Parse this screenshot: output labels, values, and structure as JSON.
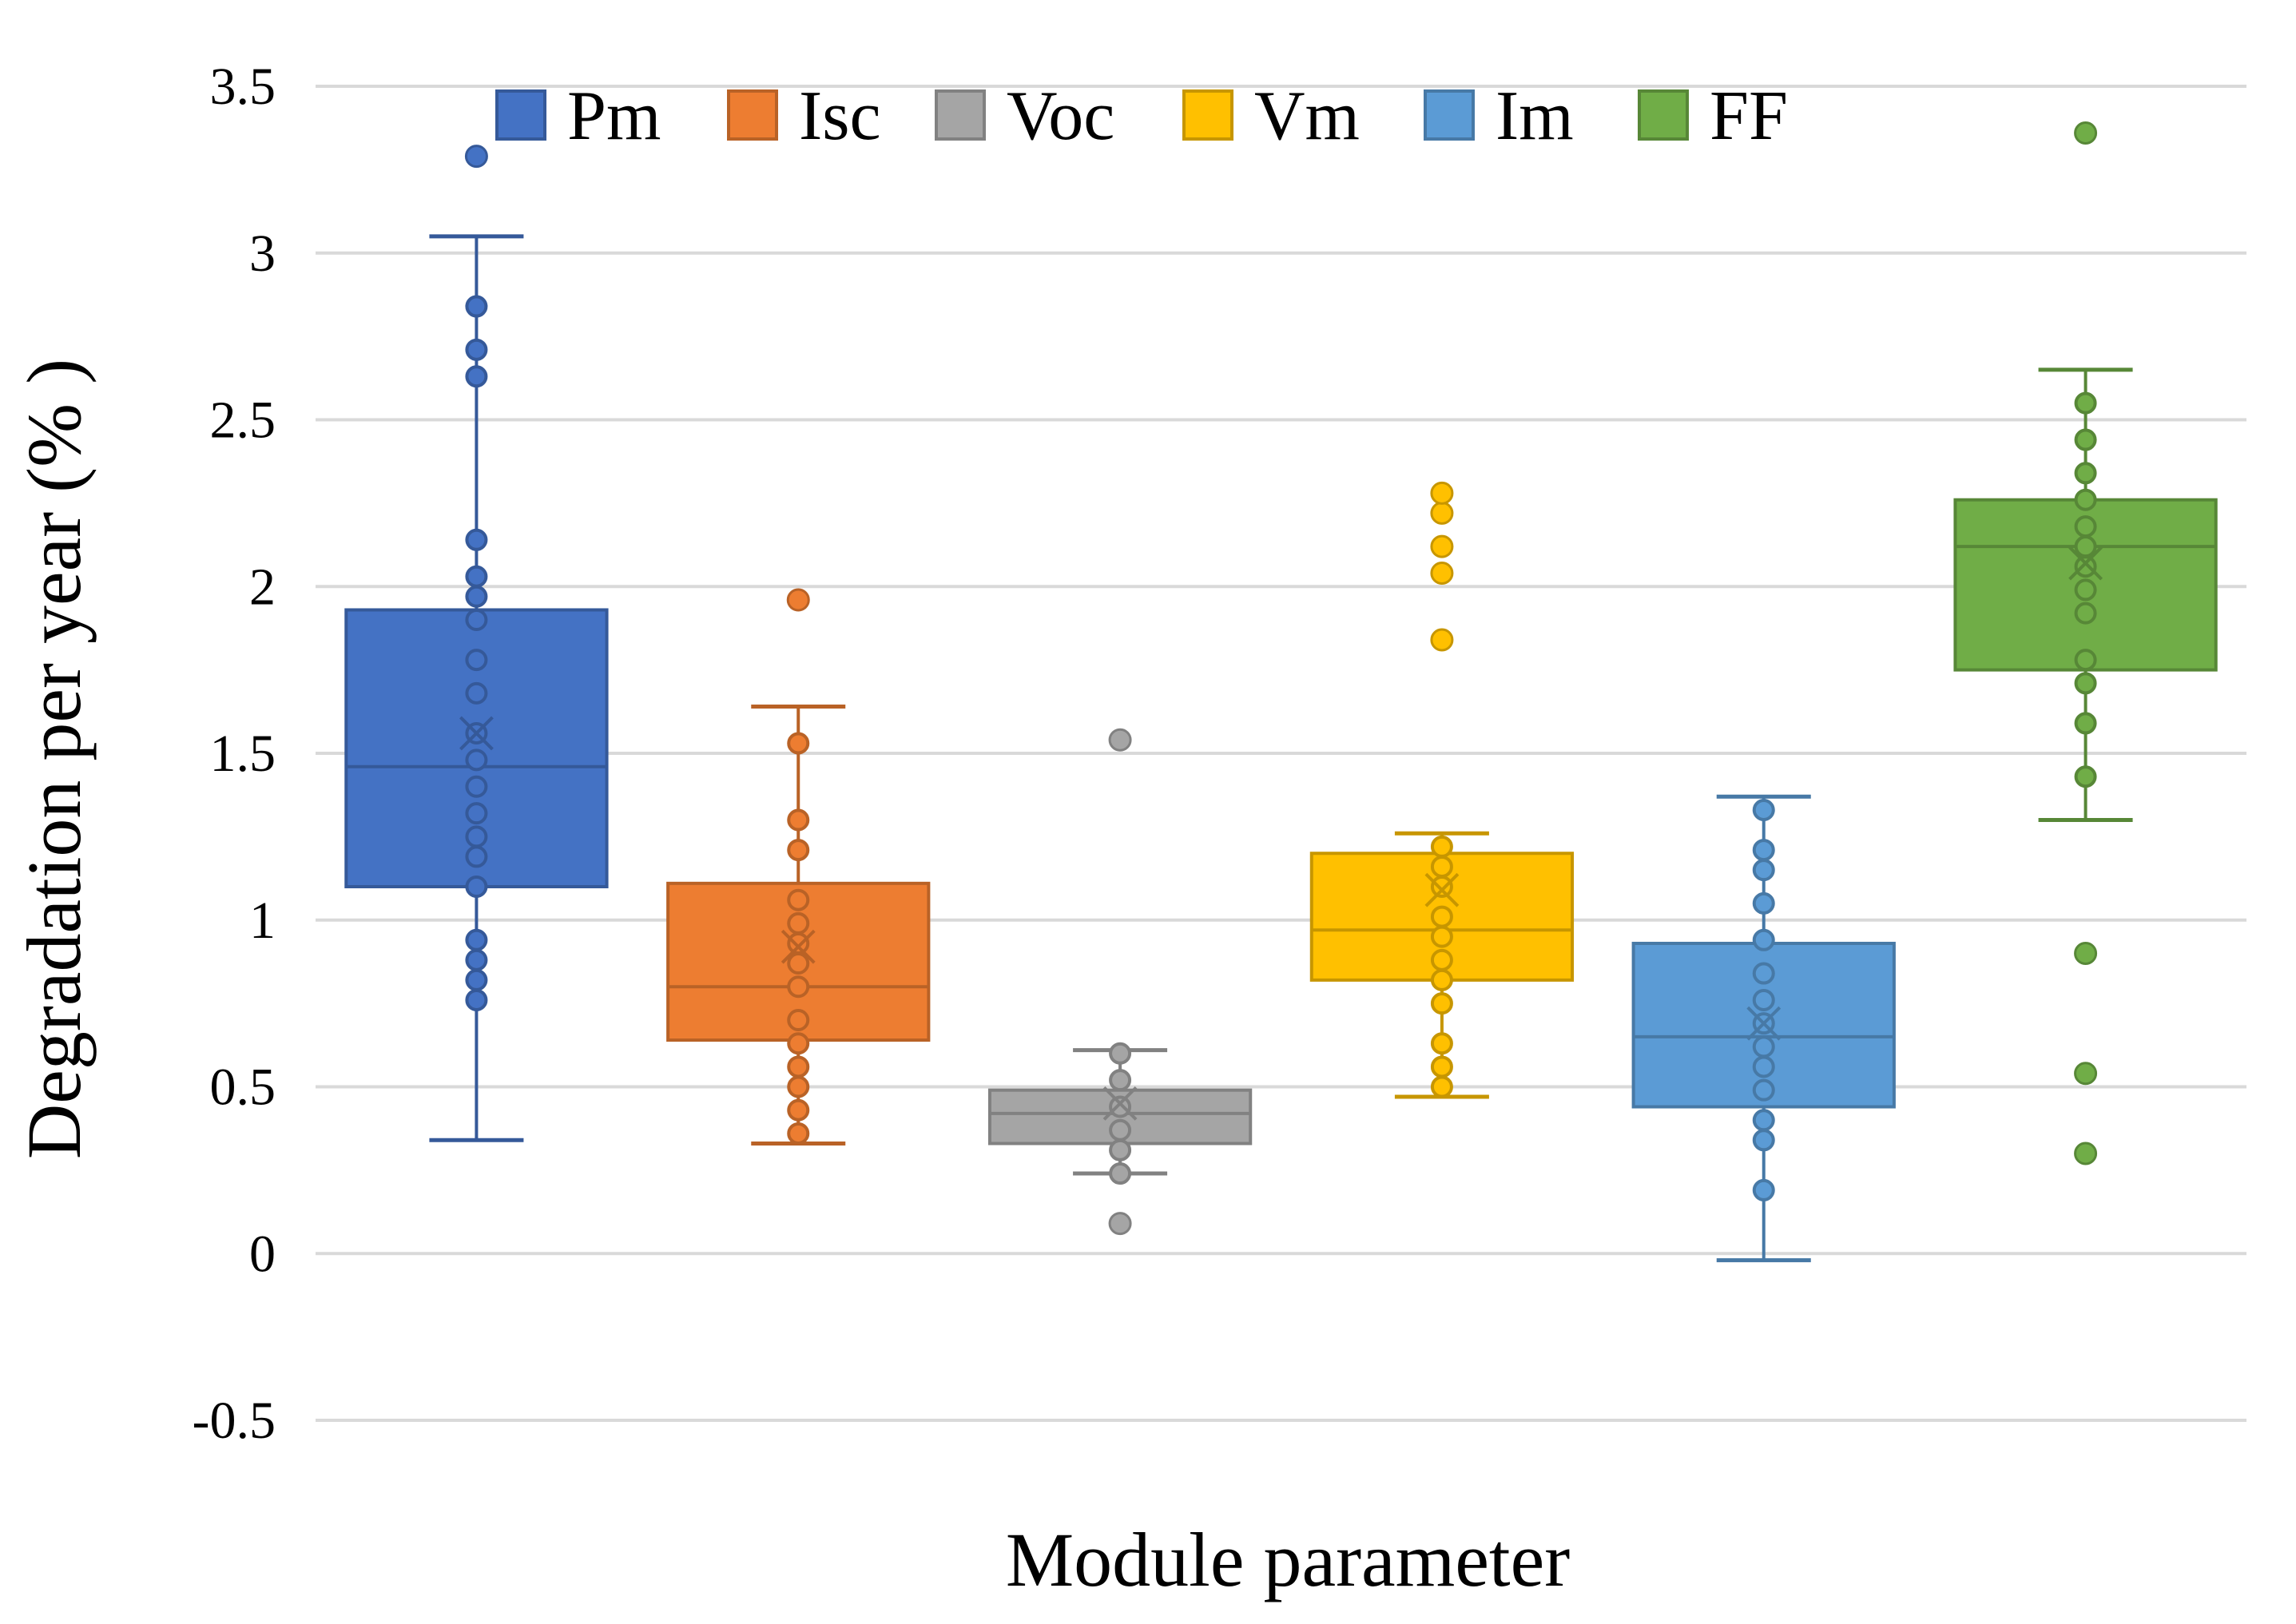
{
  "chart_data": {
    "type": "box",
    "title": "",
    "xlabel": "Module parameter",
    "ylabel": "Degradation per year (% )",
    "ylim": [
      -0.5,
      3.5
    ],
    "yticks": [
      3.5,
      3,
      2.5,
      2,
      1.5,
      1,
      0.5,
      0,
      -0.5
    ],
    "ytick_labels": [
      "3.5",
      "3",
      "2.5",
      "2",
      "1.5",
      "1",
      "0.5",
      "0",
      "-0.5"
    ],
    "grid": true,
    "legend_position": "top",
    "series": [
      {
        "name": "Pm",
        "color": "#4472C4",
        "whisker_low": 0.34,
        "q1": 1.1,
        "median": 1.46,
        "q3": 1.93,
        "whisker_high": 3.05,
        "mean": 1.56,
        "points": [
          0.76,
          0.82,
          0.88,
          0.94,
          1.1,
          1.19,
          1.25,
          1.32,
          1.4,
          1.48,
          1.56,
          1.68,
          1.78,
          1.9,
          1.97,
          2.03,
          2.14,
          2.63,
          2.71,
          2.84
        ],
        "outliers": [
          3.29
        ]
      },
      {
        "name": "Isc",
        "color": "#ED7D31",
        "whisker_low": 0.33,
        "q1": 0.64,
        "median": 0.8,
        "q3": 1.11,
        "whisker_high": 1.64,
        "mean": 0.92,
        "points": [
          0.36,
          0.43,
          0.5,
          0.56,
          0.63,
          0.7,
          0.8,
          0.87,
          0.93,
          0.99,
          1.06,
          1.21,
          1.3,
          1.53
        ],
        "outliers": [
          1.96
        ]
      },
      {
        "name": "Voc",
        "color": "#A5A5A5",
        "whisker_low": 0.24,
        "q1": 0.33,
        "median": 0.42,
        "q3": 0.49,
        "whisker_high": 0.61,
        "mean": 0.45,
        "points": [
          0.24,
          0.31,
          0.37,
          0.44,
          0.52,
          0.6
        ],
        "outliers": [
          0.09,
          1.54
        ]
      },
      {
        "name": "Vm",
        "color": "#FFC000",
        "whisker_low": 0.47,
        "q1": 0.82,
        "median": 0.97,
        "q3": 1.2,
        "whisker_high": 1.26,
        "mean": 1.09,
        "points": [
          0.5,
          0.56,
          0.63,
          0.75,
          0.82,
          0.88,
          0.95,
          1.01,
          1.1,
          1.16,
          1.22
        ],
        "outliers": [
          1.84,
          2.04,
          2.12,
          2.22,
          2.28
        ]
      },
      {
        "name": "Im",
        "color": "#5B9BD5",
        "whisker_low": -0.02,
        "q1": 0.44,
        "median": 0.65,
        "q3": 0.93,
        "whisker_high": 1.37,
        "mean": 0.69,
        "points": [
          0.19,
          0.34,
          0.4,
          0.49,
          0.56,
          0.62,
          0.69,
          0.76,
          0.84,
          0.94,
          1.05,
          1.15,
          1.21,
          1.33
        ],
        "outliers": []
      },
      {
        "name": "FF",
        "color": "#70AD47",
        "whisker_low": 1.3,
        "q1": 1.75,
        "median": 2.12,
        "q3": 2.26,
        "whisker_high": 2.65,
        "mean": 2.07,
        "points": [
          1.43,
          1.59,
          1.71,
          1.78,
          1.92,
          1.99,
          2.06,
          2.12,
          2.18,
          2.26,
          2.34,
          2.44,
          2.55
        ],
        "outliers": [
          0.3,
          0.54,
          0.9,
          3.36
        ]
      }
    ]
  }
}
